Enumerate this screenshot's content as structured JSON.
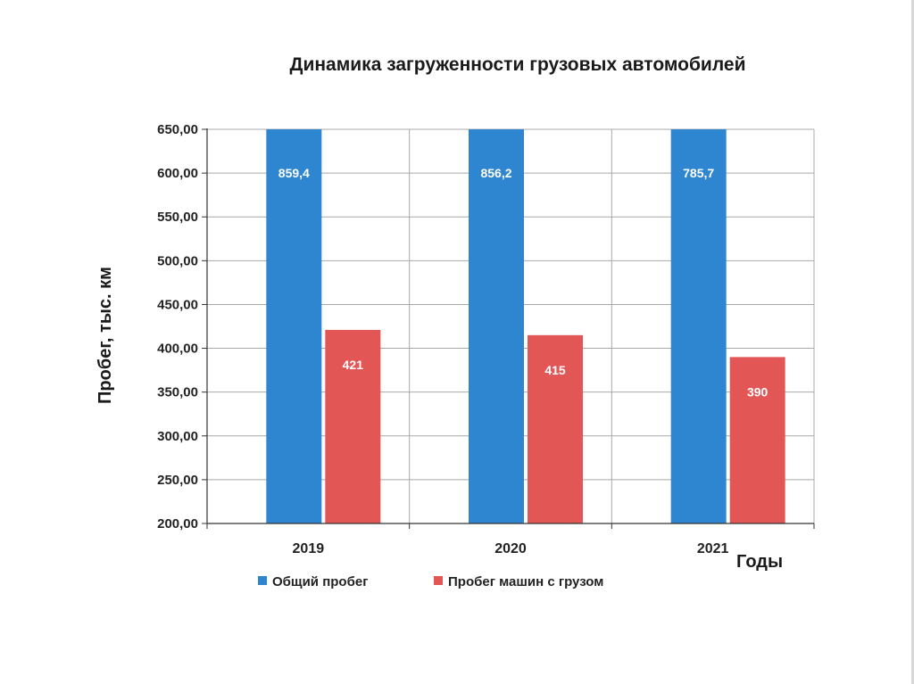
{
  "chart_data": {
    "type": "bar",
    "title": "Динамика загруженности грузовых автомобилей",
    "xlabel": "Годы",
    "ylabel": "Пробег, тыс. км",
    "categories": [
      "2019",
      "2020",
      "2021"
    ],
    "ylim": [
      200,
      650
    ],
    "yticks": [
      "200,00",
      "250,00",
      "300,00",
      "350,00",
      "400,00",
      "450,00",
      "500,00",
      "550,00",
      "600,00",
      "650,00"
    ],
    "series": [
      {
        "name": "Общий пробег",
        "values": [
          859.4,
          856.2,
          785.7
        ],
        "labels": [
          "859,4",
          "856,2",
          "785,7"
        ],
        "color": "#2e86d0"
      },
      {
        "name": "Пробег машин с грузом",
        "values": [
          421,
          415,
          390
        ],
        "labels": [
          "421",
          "415",
          "390"
        ],
        "color": "#e25656"
      }
    ],
    "grid": true,
    "legend": "bottom"
  }
}
